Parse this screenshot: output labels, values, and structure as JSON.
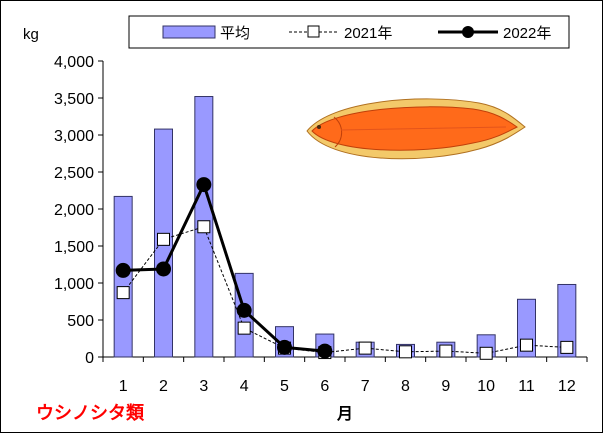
{
  "chart_data": {
    "type": "bar",
    "unit_label": "kg",
    "xlabel": "月",
    "species_label": "ウシノシタ類",
    "categories": [
      "1",
      "2",
      "3",
      "4",
      "5",
      "6",
      "7",
      "8",
      "9",
      "10",
      "11",
      "12"
    ],
    "ylim": [
      0,
      4000
    ],
    "yticks": [
      "0",
      "500",
      "1,000",
      "1,500",
      "2,000",
      "2,500",
      "3,000",
      "3,500",
      "4,000"
    ],
    "ytick_values": [
      0,
      500,
      1000,
      1500,
      2000,
      2500,
      3000,
      3500,
      4000
    ],
    "grid": false,
    "legend_position": "top",
    "series": [
      {
        "name": "平均",
        "kind": "bar",
        "color": "#9999ff",
        "values": [
          2170,
          3080,
          3520,
          1130,
          410,
          310,
          200,
          170,
          200,
          300,
          780,
          980
        ]
      },
      {
        "name": "2021年",
        "kind": "line-dashed-square",
        "color": "#000000",
        "values": [
          870,
          1590,
          1760,
          390,
          120,
          60,
          120,
          70,
          80,
          50,
          160,
          130
        ]
      },
      {
        "name": "2022年",
        "kind": "line-solid-circle",
        "color": "#000000",
        "values": [
          1170,
          1190,
          2330,
          630,
          130,
          80,
          null,
          null,
          null,
          null,
          null,
          null
        ]
      }
    ]
  }
}
